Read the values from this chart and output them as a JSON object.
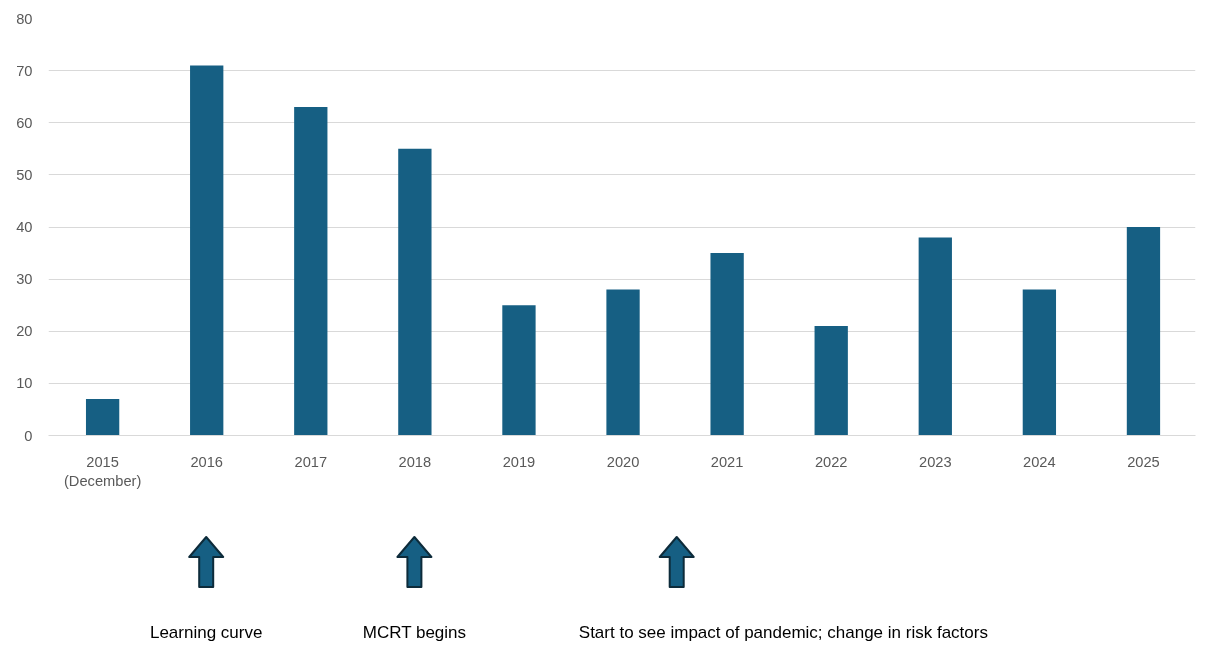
{
  "chart_data": {
    "type": "bar",
    "categories": [
      "2015\n(December)",
      "2016",
      "2017",
      "2018",
      "2019",
      "2020",
      "2021",
      "2022",
      "2023",
      "2024",
      "2025"
    ],
    "values": [
      7,
      71,
      63,
      55,
      25,
      28,
      35,
      21,
      38,
      28,
      40
    ],
    "color": "#165f83",
    "ylim": [
      0,
      80
    ],
    "yticks": [
      0,
      10,
      20,
      30,
      40,
      50,
      60,
      70,
      80
    ],
    "grid": "y",
    "annotations": [
      "Learning curve",
      "MCRT begins",
      "Start to see impact of pandemic; change in risk factors"
    ]
  }
}
